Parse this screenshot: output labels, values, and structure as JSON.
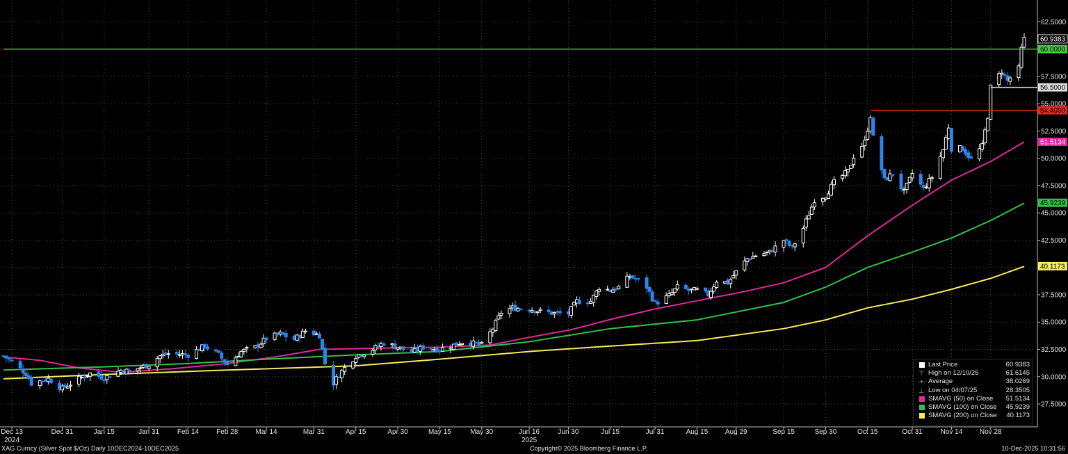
{
  "footer": {
    "security": "XAG Curncy (Silver Spot  $/Oz) Daily 10DEC2024-10DEC2025",
    "copyright": "Copyright© 2025 Bloomberg Finance L.P.",
    "timestamp": "10-Dec-2025 10:31:56"
  },
  "legend": {
    "items": [
      {
        "label": "Last Price",
        "value": "60.9383",
        "kind": "box",
        "color": "#ffffff"
      },
      {
        "label": "High on 12/10/25",
        "value": "61.6145",
        "kind": "glyph",
        "glyph": "⊤",
        "color": "#bbbbbb"
      },
      {
        "label": "Average",
        "value": "38.0269",
        "kind": "glyph",
        "glyph": "-+-",
        "color": "#bbbbbb"
      },
      {
        "label": "Low on 04/07/25",
        "value": "28.3505",
        "kind": "glyph",
        "glyph": "⊥",
        "color": "#bbbbbb"
      },
      {
        "label": "SMAVG (50)  on Close",
        "value": "51.5134",
        "kind": "box",
        "color": "#e0289a"
      },
      {
        "label": "SMAVG (100)  on Close",
        "value": "45.9239",
        "kind": "box",
        "color": "#2ec24a"
      },
      {
        "label": "SMAVG (200)  on Close",
        "value": "40.1173",
        "kind": "box",
        "color": "#f5ec5a"
      }
    ]
  },
  "chart_data": {
    "type": "candlestick",
    "y_axis": {
      "min": 25.4,
      "max": 64.5,
      "side": "right",
      "ticks": [
        27.5,
        30.0,
        32.5,
        35.0,
        37.5,
        40.0,
        42.5,
        45.0,
        47.5,
        50.0,
        52.5,
        55.0,
        57.5,
        60.0,
        62.5
      ],
      "tick_labels": [
        "27.5000",
        "30.0000",
        "32.5000",
        "35.0000",
        "37.5000",
        "40.0000",
        "42.5000",
        "45.0000",
        "47.5000",
        "50.0000",
        "52.5000",
        "55.0000",
        "57.5000",
        "60.0000",
        "62.5000"
      ]
    },
    "x_axis": {
      "start": "2024-12-10",
      "end": "2025-12-10",
      "ticks": [
        {
          "date": "2024-12-13",
          "label": "Dec 13",
          "sublabel": "2024"
        },
        {
          "date": "2024-12-31",
          "label": "Dec 31"
        },
        {
          "date": "2025-01-15",
          "label": "Jan 15"
        },
        {
          "date": "2025-01-31",
          "label": "Jan 31"
        },
        {
          "date": "2025-02-14",
          "label": "Feb 14"
        },
        {
          "date": "2025-02-28",
          "label": "Feb 28"
        },
        {
          "date": "2025-03-14",
          "label": "Mar 14"
        },
        {
          "date": "2025-03-31",
          "label": "Mar 31"
        },
        {
          "date": "2025-04-15",
          "label": "Apr 15"
        },
        {
          "date": "2025-04-30",
          "label": "Apr 30"
        },
        {
          "date": "2025-05-15",
          "label": "May 15"
        },
        {
          "date": "2025-05-30",
          "label": "May 30"
        },
        {
          "date": "2025-06-16",
          "label": "Jun 16",
          "sublabel": "2025"
        },
        {
          "date": "2025-06-30",
          "label": "Jun 30"
        },
        {
          "date": "2025-07-15",
          "label": "Jul 15"
        },
        {
          "date": "2025-07-31",
          "label": "Jul 31"
        },
        {
          "date": "2025-08-15",
          "label": "Aug 15"
        },
        {
          "date": "2025-08-29",
          "label": "Aug 29"
        },
        {
          "date": "2025-09-15",
          "label": "Sep 15"
        },
        {
          "date": "2025-09-30",
          "label": "Sep 30"
        },
        {
          "date": "2025-10-15",
          "label": "Oct 15"
        },
        {
          "date": "2025-10-31",
          "label": "Oct 31"
        },
        {
          "date": "2025-11-14",
          "label": "Nov 14"
        },
        {
          "date": "2025-11-28",
          "label": "Nov 28"
        }
      ]
    },
    "grid": true,
    "colors": {
      "up": "#ffffff",
      "down": "#2f84e8",
      "background": "#000000",
      "grid": "#444444"
    },
    "price_path": [
      [
        "2024-12-10",
        31.9
      ],
      [
        "2024-12-13",
        31.4
      ],
      [
        "2024-12-18",
        30.3
      ],
      [
        "2024-12-20",
        29.4
      ],
      [
        "2024-12-26",
        29.8
      ],
      [
        "2024-12-31",
        28.9
      ],
      [
        "2025-01-06",
        29.8
      ],
      [
        "2025-01-10",
        30.3
      ],
      [
        "2025-01-15",
        29.9
      ],
      [
        "2025-01-21",
        30.6
      ],
      [
        "2025-01-24",
        30.5
      ],
      [
        "2025-01-31",
        31.1
      ],
      [
        "2025-02-04",
        31.9
      ],
      [
        "2025-02-07",
        32.1
      ],
      [
        "2025-02-14",
        32.0
      ],
      [
        "2025-02-20",
        32.8
      ],
      [
        "2025-02-25",
        32.0
      ],
      [
        "2025-02-28",
        31.1
      ],
      [
        "2025-03-05",
        32.3
      ],
      [
        "2025-03-10",
        32.7
      ],
      [
        "2025-03-14",
        33.5
      ],
      [
        "2025-03-19",
        33.9
      ],
      [
        "2025-03-24",
        33.4
      ],
      [
        "2025-03-28",
        34.2
      ],
      [
        "2025-04-02",
        33.8
      ],
      [
        "2025-04-04",
        31.2
      ],
      [
        "2025-04-07",
        29.4
      ],
      [
        "2025-04-09",
        30.2
      ],
      [
        "2025-04-11",
        30.8
      ],
      [
        "2025-04-15",
        31.9
      ],
      [
        "2025-04-21",
        32.5
      ],
      [
        "2025-04-25",
        33.1
      ],
      [
        "2025-04-30",
        32.7
      ],
      [
        "2025-05-05",
        32.2
      ],
      [
        "2025-05-09",
        32.7
      ],
      [
        "2025-05-15",
        32.5
      ],
      [
        "2025-05-20",
        32.9
      ],
      [
        "2025-05-23",
        33.2
      ],
      [
        "2025-05-30",
        32.9
      ],
      [
        "2025-06-03",
        34.4
      ],
      [
        "2025-06-06",
        35.9
      ],
      [
        "2025-06-10",
        36.3
      ],
      [
        "2025-06-16",
        36.2
      ],
      [
        "2025-06-20",
        36.0
      ],
      [
        "2025-06-25",
        35.8
      ],
      [
        "2025-06-30",
        35.8
      ],
      [
        "2025-07-03",
        36.9
      ],
      [
        "2025-07-08",
        36.9
      ],
      [
        "2025-07-11",
        38.2
      ],
      [
        "2025-07-15",
        37.9
      ],
      [
        "2025-07-18",
        38.2
      ],
      [
        "2025-07-22",
        39.2
      ],
      [
        "2025-07-25",
        38.8
      ],
      [
        "2025-07-28",
        38.2
      ],
      [
        "2025-07-31",
        36.7
      ],
      [
        "2025-08-05",
        37.4
      ],
      [
        "2025-08-08",
        38.2
      ],
      [
        "2025-08-12",
        37.9
      ],
      [
        "2025-08-15",
        37.9
      ],
      [
        "2025-08-19",
        37.5
      ],
      [
        "2025-08-22",
        38.8
      ],
      [
        "2025-08-26",
        38.6
      ],
      [
        "2025-08-29",
        39.6
      ],
      [
        "2025-09-02",
        40.8
      ],
      [
        "2025-09-05",
        41.1
      ],
      [
        "2025-09-10",
        41.4
      ],
      [
        "2025-09-15",
        42.5
      ],
      [
        "2025-09-18",
        41.8
      ],
      [
        "2025-09-22",
        43.6
      ],
      [
        "2025-09-26",
        46.2
      ],
      [
        "2025-09-30",
        46.6
      ],
      [
        "2025-10-03",
        47.8
      ],
      [
        "2025-10-08",
        48.8
      ],
      [
        "2025-10-10",
        50.2
      ],
      [
        "2025-10-14",
        51.5
      ],
      [
        "2025-10-16",
        53.9
      ],
      [
        "2025-10-17",
        51.9
      ],
      [
        "2025-10-21",
        48.0
      ],
      [
        "2025-10-24",
        48.6
      ],
      [
        "2025-10-28",
        46.9
      ],
      [
        "2025-10-31",
        48.6
      ],
      [
        "2025-11-04",
        47.2
      ],
      [
        "2025-11-07",
        48.3
      ],
      [
        "2025-11-11",
        50.8
      ],
      [
        "2025-11-13",
        52.9
      ],
      [
        "2025-11-14",
        50.9
      ],
      [
        "2025-11-18",
        50.9
      ],
      [
        "2025-11-21",
        49.9
      ],
      [
        "2025-11-25",
        51.1
      ],
      [
        "2025-11-27",
        53.9
      ],
      [
        "2025-11-28",
        56.5
      ],
      [
        "2025-12-02",
        58.0
      ],
      [
        "2025-12-04",
        57.1
      ],
      [
        "2025-12-08",
        58.2
      ],
      [
        "2025-12-09",
        60.0
      ],
      [
        "2025-12-10",
        60.9
      ]
    ],
    "moving_averages": [
      {
        "name": "SMAVG (50)  on Close",
        "color": "#e0289a",
        "points": [
          [
            "2024-12-10",
            31.8
          ],
          [
            "2024-12-23",
            31.5
          ],
          [
            "2025-01-06",
            30.8
          ],
          [
            "2025-01-21",
            30.4
          ],
          [
            "2025-02-07",
            30.7
          ],
          [
            "2025-02-28",
            31.2
          ],
          [
            "2025-03-17",
            31.8
          ],
          [
            "2025-04-02",
            32.5
          ],
          [
            "2025-04-21",
            32.6
          ],
          [
            "2025-05-15",
            32.7
          ],
          [
            "2025-06-02",
            32.9
          ],
          [
            "2025-06-16",
            33.6
          ],
          [
            "2025-07-01",
            34.3
          ],
          [
            "2025-07-16",
            35.3
          ],
          [
            "2025-07-31",
            36.2
          ],
          [
            "2025-08-18",
            37.1
          ],
          [
            "2025-09-01",
            37.8
          ],
          [
            "2025-09-15",
            38.6
          ],
          [
            "2025-09-30",
            40.0
          ],
          [
            "2025-10-15",
            42.9
          ],
          [
            "2025-10-31",
            45.7
          ],
          [
            "2025-11-14",
            48.0
          ],
          [
            "2025-11-28",
            49.7
          ],
          [
            "2025-12-10",
            51.5
          ]
        ]
      },
      {
        "name": "SMAVG (100)  on Close",
        "color": "#2ec24a",
        "points": [
          [
            "2024-12-10",
            30.6
          ],
          [
            "2025-01-15",
            30.9
          ],
          [
            "2025-02-14",
            31.2
          ],
          [
            "2025-03-14",
            31.6
          ],
          [
            "2025-04-15",
            32.0
          ],
          [
            "2025-05-15",
            32.3
          ],
          [
            "2025-06-16",
            33.2
          ],
          [
            "2025-07-15",
            34.4
          ],
          [
            "2025-08-15",
            35.2
          ],
          [
            "2025-09-15",
            36.8
          ],
          [
            "2025-09-30",
            38.2
          ],
          [
            "2025-10-15",
            40.0
          ],
          [
            "2025-10-31",
            41.4
          ],
          [
            "2025-11-14",
            42.7
          ],
          [
            "2025-11-28",
            44.3
          ],
          [
            "2025-12-10",
            45.9
          ]
        ]
      },
      {
        "name": "SMAVG (200)  on Close",
        "color": "#f5ec5a",
        "points": [
          [
            "2024-12-10",
            29.8
          ],
          [
            "2025-01-15",
            30.2
          ],
          [
            "2025-02-28",
            30.6
          ],
          [
            "2025-04-15",
            31.0
          ],
          [
            "2025-05-15",
            31.6
          ],
          [
            "2025-06-16",
            32.3
          ],
          [
            "2025-07-15",
            32.8
          ],
          [
            "2025-08-15",
            33.3
          ],
          [
            "2025-09-15",
            34.4
          ],
          [
            "2025-09-30",
            35.2
          ],
          [
            "2025-10-15",
            36.3
          ],
          [
            "2025-10-31",
            37.1
          ],
          [
            "2025-11-14",
            38.0
          ],
          [
            "2025-11-28",
            39.0
          ],
          [
            "2025-12-10",
            40.1
          ]
        ]
      }
    ],
    "horizontal_levels": [
      {
        "value": 60.0,
        "label": "60.0000",
        "color": "#3fcf3a",
        "label_text_color": "#000000",
        "from": "2024-12-10"
      },
      {
        "value": 56.5,
        "label": "56.5000",
        "color": "#dddddd",
        "label_text_color": "#000000",
        "from": "2025-11-28"
      },
      {
        "value": 54.4,
        "label": "54.4000",
        "color": "#e8261c",
        "label_text_color": "#000000",
        "from": "2025-10-16"
      }
    ],
    "axis_value_tags": [
      {
        "value": 60.9383,
        "label": "60.9383",
        "fill": "#000000",
        "text_color": "#ffffff",
        "stroke": "#ffffff"
      },
      {
        "value": 51.5134,
        "label": "51.5134",
        "fill": "#e0289a",
        "text_color": "#ffffff"
      },
      {
        "value": 45.9239,
        "label": "45.9239",
        "fill": "#2ec24a",
        "text_color": "#000000"
      },
      {
        "value": 40.1173,
        "label": "40.1173",
        "fill": "#f5ec5a",
        "text_color": "#000000"
      }
    ]
  }
}
